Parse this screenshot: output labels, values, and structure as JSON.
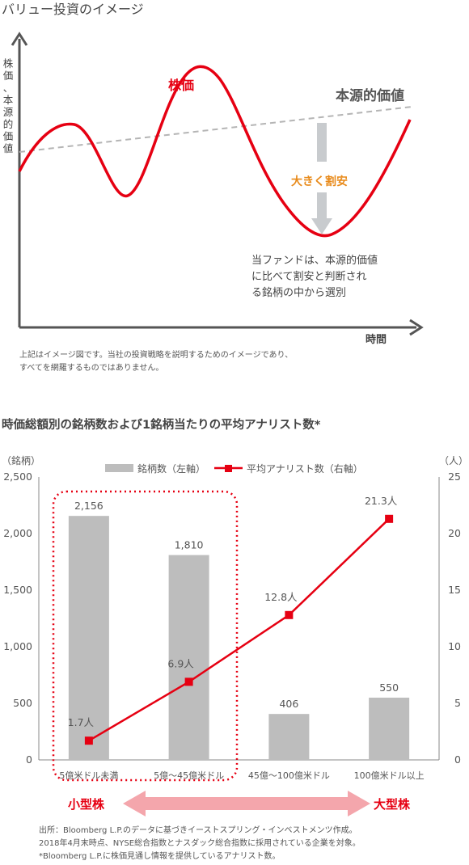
{
  "colors": {
    "red": "#e60012",
    "orange": "#e88a1a",
    "gray_bar": "#bdbdbd",
    "arrow_gray": "#c8cbce",
    "axis": "#555555",
    "text": "#444444",
    "pink_arrow": "#f4a6ac"
  },
  "concept": {
    "title": "バリュー投資のイメージ",
    "ylabel": "株価、本源的価値",
    "xlabel": "時間",
    "price_label": "株価",
    "intrinsic_label": "本源的価値",
    "discount_label": "大きく割安",
    "fund_note": [
      "当ファンドは、本源的価値",
      "に比べて割安と判断され",
      "る銘柄の中から選別"
    ],
    "footnote": [
      "上記はイメージ図です。当社の投資戦略を説明するためのイメージであり、",
      "すべてを網羅するものではありません。"
    ]
  },
  "chart_data": {
    "type": "bar",
    "title": "時価総額別の銘柄数および1銘柄当たりの平均アナリスト数*",
    "categories": [
      "5億米ドル未満",
      "5億～45億米ドル",
      "45億～100億米ドル",
      "100億米ドル以上"
    ],
    "series": [
      {
        "name": "銘柄数（左軸）",
        "type": "bar",
        "axis": "left",
        "values": [
          2156,
          1810,
          406,
          550
        ],
        "labels": [
          "2,156",
          "1,810",
          "406",
          "550"
        ]
      },
      {
        "name": "平均アナリスト数（右軸）",
        "type": "line",
        "axis": "right",
        "values": [
          1.7,
          6.9,
          12.8,
          21.3
        ],
        "labels": [
          "1.7人",
          "6.9人",
          "12.8人",
          "21.3人"
        ]
      }
    ],
    "left_axis": {
      "unit": "（銘柄）",
      "ylim": [
        0,
        2500
      ],
      "ticks": [
        {
          "v": 0,
          "label": "0"
        },
        {
          "v": 500,
          "label": "500"
        },
        {
          "v": 1000,
          "label": "1,000"
        },
        {
          "v": 1500,
          "label": "1,500"
        },
        {
          "v": 2000,
          "label": "2,000"
        },
        {
          "v": 2500,
          "label": "2,500"
        }
      ]
    },
    "right_axis": {
      "unit": "（人）",
      "ylim": [
        0,
        25
      ],
      "ticks": [
        {
          "v": 0,
          "label": "0"
        },
        {
          "v": 5,
          "label": "5"
        },
        {
          "v": 10,
          "label": "10"
        },
        {
          "v": 15,
          "label": "15"
        },
        {
          "v": 20,
          "label": "20"
        },
        {
          "v": 25,
          "label": "25"
        }
      ]
    },
    "grid": false,
    "legend_position": "top"
  },
  "size_labels": {
    "small": "小型株",
    "large": "大型株"
  },
  "source_note": [
    "出所：Bloomberg L.P.のデータに基づきイーストスプリング・インベストメンツ作成。",
    "2018年4月末時点、NYSE総合指数とナスダック総合指数に採用されている企業を対象。",
    "*Bloomberg L.P.に株価見通し情報を提供しているアナリスト数。"
  ]
}
